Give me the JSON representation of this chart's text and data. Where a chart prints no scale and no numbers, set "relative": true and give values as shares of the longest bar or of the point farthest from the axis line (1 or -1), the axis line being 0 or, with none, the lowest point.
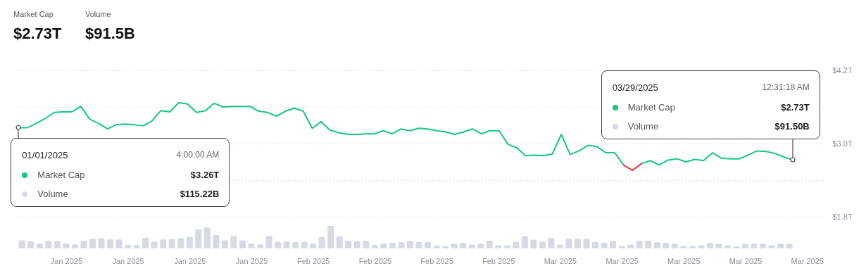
{
  "chart_data": [
    {
      "type": "line",
      "x": [
        "2025-01-01",
        "2025-01-02",
        "2025-01-03",
        "2025-01-04",
        "2025-01-05",
        "2025-01-06",
        "2025-01-07",
        "2025-01-08",
        "2025-01-09",
        "2025-01-10",
        "2025-01-11",
        "2025-01-12",
        "2025-01-13",
        "2025-01-14",
        "2025-01-15",
        "2025-01-16",
        "2025-01-17",
        "2025-01-18",
        "2025-01-19",
        "2025-01-20",
        "2025-01-21",
        "2025-01-22",
        "2025-01-23",
        "2025-01-24",
        "2025-01-25",
        "2025-01-26",
        "2025-01-27",
        "2025-01-28",
        "2025-01-29",
        "2025-01-30",
        "2025-01-31",
        "2025-02-01",
        "2025-02-02",
        "2025-02-03",
        "2025-02-04",
        "2025-02-05",
        "2025-02-06",
        "2025-02-07",
        "2025-02-08",
        "2025-02-09",
        "2025-02-10",
        "2025-02-11",
        "2025-02-12",
        "2025-02-13",
        "2025-02-14",
        "2025-02-15",
        "2025-02-16",
        "2025-02-17",
        "2025-02-18",
        "2025-02-19",
        "2025-02-20",
        "2025-02-21",
        "2025-02-22",
        "2025-02-23",
        "2025-02-24",
        "2025-02-25",
        "2025-02-26",
        "2025-02-27",
        "2025-02-28",
        "2025-03-01",
        "2025-03-02",
        "2025-03-03",
        "2025-03-04",
        "2025-03-05",
        "2025-03-06",
        "2025-03-07",
        "2025-03-08",
        "2025-03-09",
        "2025-03-10",
        "2025-03-11",
        "2025-03-12",
        "2025-03-13",
        "2025-03-14",
        "2025-03-15",
        "2025-03-16",
        "2025-03-17",
        "2025-03-18",
        "2025-03-19",
        "2025-03-20",
        "2025-03-21",
        "2025-03-22",
        "2025-03-23",
        "2025-03-24",
        "2025-03-25",
        "2025-03-26",
        "2025-03-27",
        "2025-03-28",
        "2025-03-29"
      ],
      "series": [
        {
          "name": "Market Cap",
          "color": "#16c784",
          "values": [
            3.26,
            3.26,
            3.33,
            3.41,
            3.51,
            3.52,
            3.52,
            3.61,
            3.4,
            3.33,
            3.24,
            3.31,
            3.32,
            3.31,
            3.29,
            3.37,
            3.54,
            3.52,
            3.67,
            3.65,
            3.51,
            3.54,
            3.66,
            3.6,
            3.61,
            3.61,
            3.61,
            3.53,
            3.51,
            3.45,
            3.53,
            3.58,
            3.53,
            3.25,
            3.36,
            3.22,
            3.18,
            3.15,
            3.15,
            3.16,
            3.16,
            3.21,
            3.16,
            3.24,
            3.21,
            3.25,
            3.24,
            3.21,
            3.19,
            3.15,
            3.19,
            3.24,
            3.16,
            3.21,
            3.21,
            2.99,
            2.93,
            2.8,
            2.81,
            2.8,
            2.83,
            3.15,
            2.82,
            2.88,
            2.97,
            2.95,
            2.85,
            2.85,
            2.65,
            null,
            2.67,
            2.72,
            2.65,
            2.73,
            2.75,
            2.7,
            2.74,
            2.72,
            2.85,
            2.76,
            2.75,
            2.75,
            2.81,
            2.88,
            2.87,
            2.84,
            2.78,
            2.73
          ]
        },
        {
          "color": "#ea3943",
          "values": [
            null,
            null,
            null,
            null,
            null,
            null,
            null,
            null,
            null,
            null,
            null,
            null,
            null,
            null,
            null,
            null,
            null,
            null,
            null,
            null,
            null,
            null,
            null,
            null,
            null,
            null,
            null,
            null,
            null,
            null,
            null,
            null,
            null,
            null,
            null,
            null,
            null,
            null,
            null,
            null,
            null,
            null,
            null,
            null,
            null,
            null,
            null,
            null,
            null,
            null,
            null,
            null,
            null,
            null,
            null,
            null,
            null,
            null,
            null,
            null,
            null,
            null,
            null,
            null,
            null,
            null,
            null,
            null,
            2.65,
            2.56,
            2.67,
            null,
            null,
            null,
            null,
            null,
            null,
            null,
            null,
            null,
            null,
            null,
            null,
            null,
            null,
            null,
            null,
            null
          ]
        }
      ],
      "xlim": [
        "2024-12-31T12:00",
        "2025-04-01T12:00"
      ],
      "ylim": [
        1.8,
        4.2
      ],
      "yticks": [
        {
          "value": 1.8,
          "label": "$1.8T"
        },
        {
          "value": 2.4,
          "label": null
        },
        {
          "value": 3.0,
          "label": "$3.0T"
        },
        {
          "value": 3.6,
          "label": null
        },
        {
          "value": 4.2,
          "label": "$4.2T"
        }
      ],
      "tick_labels": "y",
      "grid": "y",
      "legend": "top right",
      "annotations": [
        "$2.73T",
        "$91.5B",
        "01/01/2025",
        "4:00:00 AM",
        "$3.26T",
        "$115.22B",
        "03/29/2025",
        "12:31:18 AM",
        "$2.73T",
        "$91.50B"
      ]
    },
    {
      "type": "bar",
      "relative": true,
      "x": [
        "2025-01-01",
        "2025-01-02",
        "2025-01-03",
        "2025-01-04",
        "2025-01-05",
        "2025-01-06",
        "2025-01-07",
        "2025-01-08",
        "2025-01-09",
        "2025-01-10",
        "2025-01-11",
        "2025-01-12",
        "2025-01-13",
        "2025-01-14",
        "2025-01-15",
        "2025-01-16",
        "2025-01-17",
        "2025-01-18",
        "2025-01-19",
        "2025-01-20",
        "2025-01-21",
        "2025-01-22",
        "2025-01-23",
        "2025-01-24",
        "2025-01-25",
        "2025-01-26",
        "2025-01-27",
        "2025-01-28",
        "2025-01-29",
        "2025-01-30",
        "2025-01-31",
        "2025-02-01",
        "2025-02-02",
        "2025-02-03",
        "2025-02-04",
        "2025-02-05",
        "2025-02-06",
        "2025-02-07",
        "2025-02-08",
        "2025-02-09",
        "2025-02-10",
        "2025-02-11",
        "2025-02-12",
        "2025-02-13",
        "2025-02-14",
        "2025-02-15",
        "2025-02-16",
        "2025-02-17",
        "2025-02-18",
        "2025-02-19",
        "2025-02-20",
        "2025-02-21",
        "2025-02-22",
        "2025-02-23",
        "2025-02-24",
        "2025-02-25",
        "2025-02-26",
        "2025-02-27",
        "2025-02-28",
        "2025-03-01",
        "2025-03-02",
        "2025-03-03",
        "2025-03-04",
        "2025-03-05",
        "2025-03-06",
        "2025-03-07",
        "2025-03-08",
        "2025-03-09",
        "2025-03-10",
        "2025-03-11",
        "2025-03-12",
        "2025-03-13",
        "2025-03-14",
        "2025-03-15",
        "2025-03-16",
        "2025-03-17",
        "2025-03-18",
        "2025-03-19",
        "2025-03-20",
        "2025-03-21",
        "2025-03-22",
        "2025-03-23",
        "2025-03-24",
        "2025-03-25",
        "2025-03-26",
        "2025-03-27",
        "2025-03-28",
        "2025-03-29"
      ],
      "series": [
        {
          "name": "Volume",
          "color": "#d5dae5",
          "values": [
            0.36,
            0.32,
            0.22,
            0.34,
            0.32,
            0.22,
            0.18,
            0.34,
            0.43,
            0.46,
            0.41,
            0.4,
            0.16,
            0.16,
            0.48,
            0.3,
            0.4,
            0.42,
            0.46,
            0.51,
            0.84,
            0.94,
            0.6,
            0.36,
            0.55,
            0.36,
            0.22,
            0.18,
            0.55,
            0.3,
            0.3,
            0.28,
            0.3,
            0.22,
            0.51,
            1,
            0.54,
            0.34,
            0.32,
            0.34,
            0.16,
            0.22,
            0.25,
            0.27,
            0.34,
            0.28,
            0.28,
            0.13,
            0.11,
            0.21,
            0.25,
            0.17,
            0.21,
            0.34,
            0.14,
            0.14,
            0.3,
            0.55,
            0.39,
            0.3,
            0.47,
            0.17,
            0.43,
            0.43,
            0.43,
            0.3,
            0.26,
            0.34,
            0.11,
            0.17,
            0.34,
            0.34,
            0.27,
            0.24,
            0.2,
            0.11,
            0.11,
            0.14,
            0.24,
            0.2,
            0.14,
            0.09,
            0.21,
            0.21,
            0.2,
            0.15,
            0.21,
            0.21
          ]
        }
      ],
      "xlim": [
        "2024-12-31T12:00",
        "2025-04-01T12:00"
      ],
      "xticks": [
        {
          "value": "2025-01-06",
          "label": "Jan 2025"
        },
        {
          "value": "2025-01-13",
          "label": "Jan 2025"
        },
        {
          "value": "2025-01-20",
          "label": "Jan 2025"
        },
        {
          "value": "2025-01-27",
          "label": "Jan 2025"
        },
        {
          "value": "2025-02-03",
          "label": "Feb 2025"
        },
        {
          "value": "2025-02-10",
          "label": "Feb 2025"
        },
        {
          "value": "2025-02-17",
          "label": "Feb 2025"
        },
        {
          "value": "2025-02-24",
          "label": "Feb 2025"
        },
        {
          "value": "2025-03-03",
          "label": "Mar 2025"
        },
        {
          "value": "2025-03-10",
          "label": "Mar 2025"
        },
        {
          "value": "2025-03-17",
          "label": "Mar 2025"
        },
        {
          "value": "2025-03-24",
          "label": "Mar 2025"
        },
        {
          "value": "2025-03-31",
          "label": "Mar 2025"
        }
      ]
    }
  ]
}
